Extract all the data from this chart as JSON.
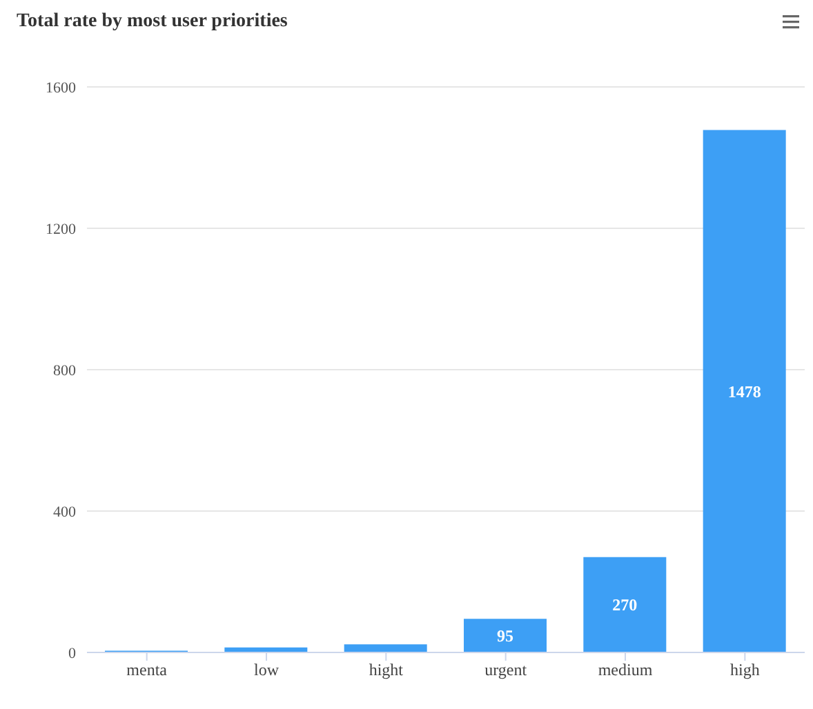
{
  "chart_data": {
    "type": "bar",
    "title": "Total rate by most user priorities",
    "categories": [
      "menta",
      "low",
      "hight",
      "urgent",
      "medium",
      "high"
    ],
    "values": [
      5,
      14,
      23,
      95,
      270,
      1478
    ],
    "value_labels": [
      null,
      null,
      null,
      "95",
      "270",
      "1478"
    ],
    "color": "#3d9ff5",
    "ylim": [
      0,
      1600
    ],
    "yticks": [
      0,
      400,
      800,
      1200,
      1600
    ],
    "grid": "y"
  }
}
